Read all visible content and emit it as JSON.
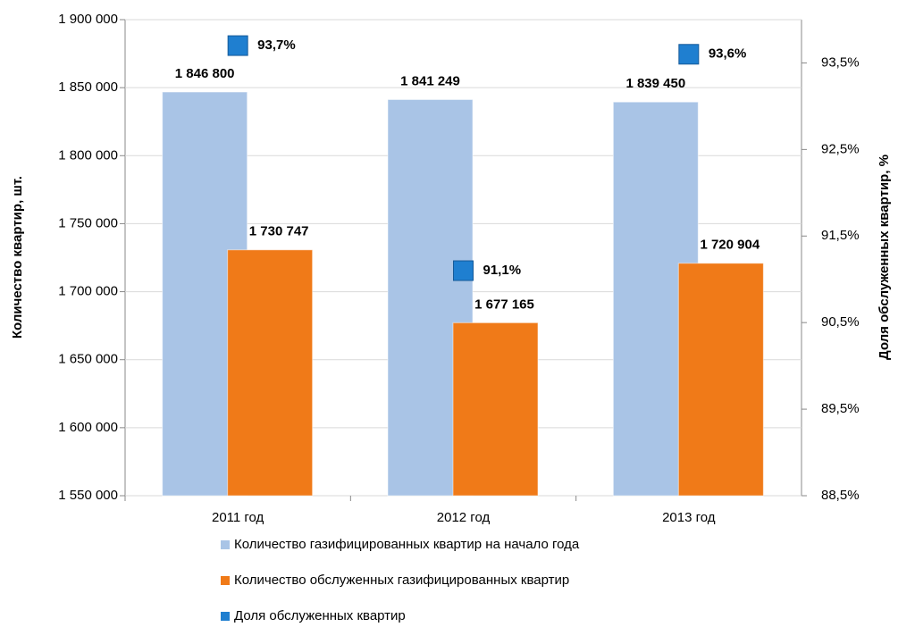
{
  "chart_data": {
    "type": "bar",
    "categories": [
      "2011 год",
      "2012 год",
      "2013 год"
    ],
    "y_label": "Количество квартир, шт.",
    "y2_label": "Доля обслуженных квартир, %",
    "ylim": [
      1550000,
      1900000
    ],
    "yticks": [
      {
        "value": 1550000,
        "label": "1 550 000"
      },
      {
        "value": 1600000,
        "label": "1 600 000"
      },
      {
        "value": 1650000,
        "label": "1 650 000"
      },
      {
        "value": 1700000,
        "label": "1 700 000"
      },
      {
        "value": 1750000,
        "label": "1 750 000"
      },
      {
        "value": 1800000,
        "label": "1 800 000"
      },
      {
        "value": 1850000,
        "label": "1 850 000"
      },
      {
        "value": 1900000,
        "label": "1 900 000"
      }
    ],
    "y2lim": [
      88.5,
      94.0
    ],
    "y2ticks": [
      {
        "value": 88.5,
        "label": "88,5%"
      },
      {
        "value": 89.5,
        "label": "89,5%"
      },
      {
        "value": 90.5,
        "label": "90,5%"
      },
      {
        "value": 91.5,
        "label": "91,5%"
      },
      {
        "value": 92.5,
        "label": "92,5%"
      },
      {
        "value": 93.5,
        "label": "93,5%"
      }
    ],
    "series": [
      {
        "name": "Количество газифицированных квартир на начало года",
        "color": "#a9c4e6",
        "values": [
          1846800,
          1841249,
          1839450
        ],
        "value_labels": [
          "1 846 800",
          "1 841 249",
          "1 839 450"
        ]
      },
      {
        "name": "Количество обслуженных газифицированных квартир",
        "color": "#f07a18",
        "values": [
          1730747,
          1677165,
          1720904
        ],
        "value_labels": [
          "1 730 747",
          "1 677 165",
          "1 720 904"
        ]
      },
      {
        "name": "Доля обслуженных квартир",
        "color": "#1f7fd0",
        "axis": "y2",
        "values": [
          93.7,
          91.1,
          93.6
        ],
        "value_labels": [
          "93,7%",
          "91,1%",
          "93,6%"
        ]
      }
    ]
  }
}
